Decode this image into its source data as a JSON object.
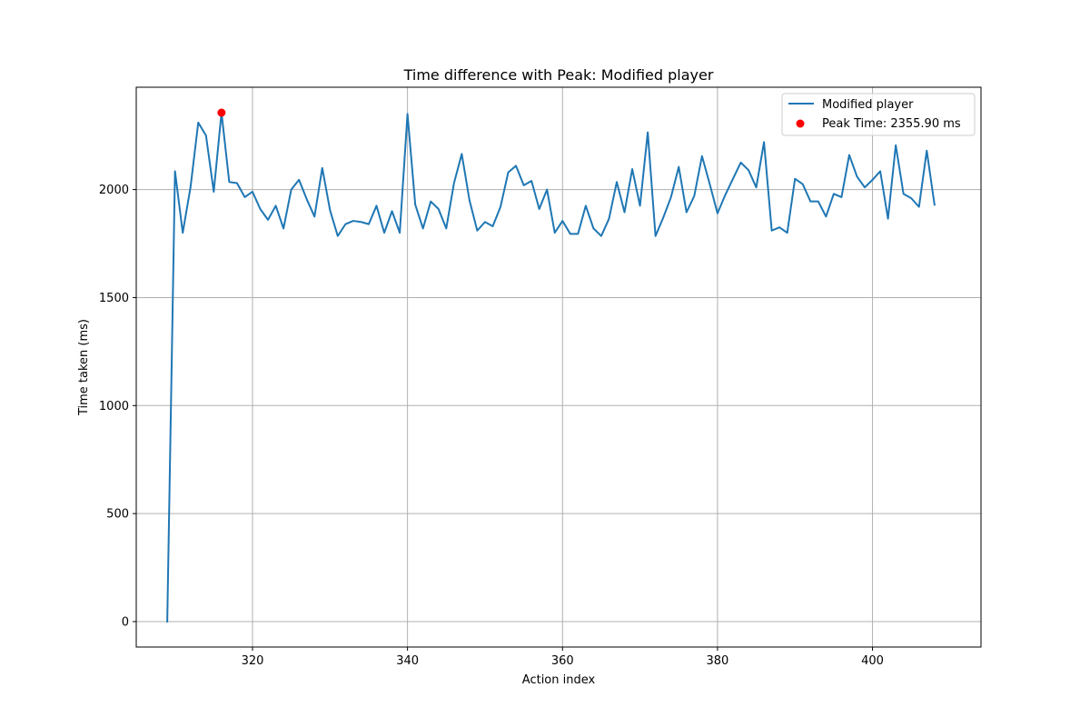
{
  "chart_data": {
    "type": "line",
    "title": "Time difference with Peak: Modified player",
    "xlabel": "Action index",
    "ylabel": "Time taken (ms)",
    "xlim": [
      305,
      414
    ],
    "ylim": [
      -117.8,
      2473.7
    ],
    "xticks": [
      320,
      340,
      360,
      380,
      400
    ],
    "yticks": [
      0,
      500,
      1000,
      1500,
      2000
    ],
    "grid": true,
    "legend_position": "top-right",
    "series": [
      {
        "name": "Modified player",
        "color": "#1f77b4",
        "x": [
          309,
          310,
          311,
          312,
          313,
          314,
          315,
          316,
          317,
          318,
          319,
          320,
          321,
          322,
          323,
          324,
          325,
          326,
          327,
          328,
          329,
          330,
          331,
          332,
          333,
          334,
          335,
          336,
          337,
          338,
          339,
          340,
          341,
          342,
          343,
          344,
          345,
          346,
          347,
          348,
          349,
          350,
          351,
          352,
          353,
          354,
          355,
          356,
          357,
          358,
          359,
          360,
          361,
          362,
          363,
          364,
          365,
          366,
          367,
          368,
          369,
          370,
          371,
          372,
          373,
          374,
          375,
          376,
          377,
          378,
          379,
          380,
          381,
          382,
          383,
          384,
          385,
          386,
          387,
          388,
          389,
          390,
          391,
          392,
          393,
          394,
          395,
          396,
          397,
          398,
          399,
          400,
          401,
          402,
          403,
          404,
          405,
          406,
          407,
          408
        ],
        "y": [
          0,
          2085,
          1800,
          2010,
          2310,
          2250,
          1990,
          2355.9,
          2035,
          2030,
          1965,
          1990,
          1910,
          1860,
          1925,
          1820,
          2000,
          2045,
          1955,
          1875,
          2100,
          1905,
          1785,
          1840,
          1855,
          1850,
          1840,
          1925,
          1800,
          1900,
          1800,
          2350,
          1930,
          1820,
          1945,
          1910,
          1820,
          2030,
          2165,
          1950,
          1810,
          1850,
          1830,
          1920,
          2080,
          2110,
          2020,
          2040,
          1910,
          2000,
          1800,
          1855,
          1795,
          1795,
          1925,
          1820,
          1785,
          1865,
          2035,
          1895,
          2095,
          1925,
          2265,
          1785,
          1870,
          1965,
          2105,
          1895,
          1970,
          2155,
          2025,
          1890,
          1975,
          2050,
          2125,
          2090,
          2010,
          2220,
          1810,
          1825,
          1800,
          2050,
          2025,
          1945,
          1945,
          1875,
          1980,
          1965,
          2160,
          2060,
          2010,
          2045,
          2085,
          1865,
          2205,
          1980,
          1960,
          1920,
          2180,
          1930
        ]
      }
    ],
    "peak": {
      "name": "Peak Time: 2355.90 ms",
      "x": 316,
      "y": 2355.9,
      "color": "#ff0000"
    }
  }
}
